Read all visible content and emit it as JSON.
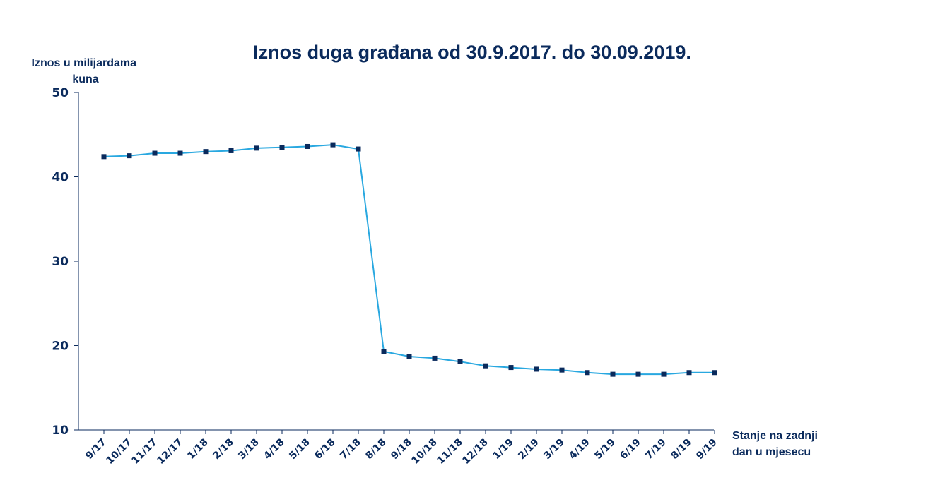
{
  "chart_data": {
    "type": "line",
    "title": "Iznos duga građana od 30.9.2017. do 30.09.2019.",
    "ylabel_lines": [
      "Iznos u milijardama",
      "kuna"
    ],
    "xlabel_lines": [
      "Stanje na zadnji",
      "dan u mjesecu"
    ],
    "ylim": [
      10,
      50
    ],
    "yticks": [
      10,
      20,
      30,
      40,
      50
    ],
    "grid": false,
    "legend": "none",
    "categories": [
      "9/17",
      "10/17",
      "11/17",
      "12/17",
      "1/18",
      "2/18",
      "3/18",
      "4/18",
      "5/18",
      "6/18",
      "7/18",
      "8/18",
      "9/18",
      "10/18",
      "11/18",
      "12/18",
      "1/19",
      "2/19",
      "3/19",
      "4/19",
      "5/19",
      "6/19",
      "7/19",
      "8/19",
      "9/19"
    ],
    "series": [
      {
        "values": [
          42.4,
          42.5,
          42.8,
          42.8,
          43.0,
          43.1,
          43.4,
          43.5,
          43.6,
          43.8,
          43.3,
          19.3,
          18.7,
          18.5,
          18.1,
          17.6,
          17.4,
          17.2,
          17.1,
          16.8,
          16.6,
          16.6,
          16.6,
          16.8,
          16.8
        ],
        "color": "#29a8e0",
        "marker_color": "#0a2a5c"
      }
    ],
    "axis_color": "#0a2a5c",
    "text_color": "#0a2a5c"
  }
}
